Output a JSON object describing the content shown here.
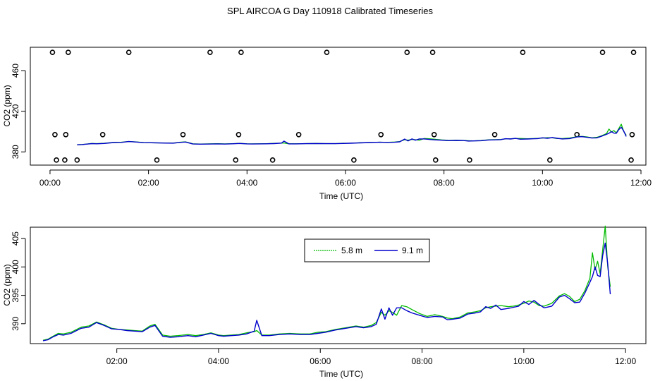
{
  "title": "SPL AIRCOA G  Day 110918  Calibrated Timeseries",
  "chart_data": [
    {
      "type": "line",
      "name": "top-panel",
      "xlabel": "Time (UTC)",
      "ylabel": "CO2 (ppm)",
      "xlim": [
        -0.4,
        12.1
      ],
      "ylim": [
        367,
        483
      ],
      "xticks": [
        0,
        2,
        4,
        6,
        8,
        10,
        12
      ],
      "xtick_labels": [
        "00:00",
        "02:00",
        "04:00",
        "06:00",
        "08:00",
        "10:00",
        "12:00"
      ],
      "yticks": [
        380,
        420,
        460
      ],
      "ytick_labels": [
        "380",
        "420",
        "460"
      ],
      "calibration_points": {
        "high": {
          "y": 478,
          "x": [
            0.05,
            0.37,
            1.6,
            3.25,
            3.88,
            5.62,
            7.25,
            7.77,
            9.6,
            11.22,
            11.85
          ]
        },
        "mid": {
          "y": 397,
          "x": [
            0.1,
            0.32,
            1.07,
            2.7,
            3.83,
            5.05,
            6.72,
            7.8,
            9.03,
            10.7,
            11.82
          ]
        },
        "low": {
          "y": 372,
          "x": [
            0.13,
            0.3,
            0.55,
            2.17,
            3.77,
            4.52,
            6.17,
            7.83,
            8.52,
            10.15,
            11.8
          ]
        }
      },
      "series": [
        {
          "name": "5.8 m",
          "color": "#00bb00"
        },
        {
          "name": "9.1 m",
          "color": "#0000cc"
        }
      ]
    },
    {
      "type": "line",
      "name": "bottom-panel",
      "xlabel": "Time (UTC)",
      "ylabel": "CO2 (ppm)",
      "xlim": [
        0.3,
        12.4
      ],
      "ylim": [
        386.5,
        407
      ],
      "xticks": [
        2,
        4,
        6,
        8,
        10,
        12
      ],
      "xtick_labels": [
        "02:00",
        "04:00",
        "06:00",
        "08:00",
        "10:00",
        "12:00"
      ],
      "yticks": [
        390,
        395,
        400,
        405
      ],
      "ytick_labels": [
        "390",
        "395",
        "400",
        "405"
      ],
      "legend": {
        "position": "top-center"
      },
      "x": [
        0.55,
        0.65,
        0.75,
        0.85,
        0.95,
        1.1,
        1.3,
        1.45,
        1.6,
        1.75,
        1.9,
        2.05,
        2.2,
        2.35,
        2.5,
        2.65,
        2.75,
        2.9,
        3.05,
        3.2,
        3.4,
        3.55,
        3.7,
        3.85,
        4.0,
        4.1,
        4.25,
        4.4,
        4.55,
        4.7,
        4.75,
        4.85,
        5.0,
        5.2,
        5.4,
        5.6,
        5.8,
        5.95,
        6.1,
        6.3,
        6.5,
        6.7,
        6.85,
        7.0,
        7.1,
        7.2,
        7.27,
        7.35,
        7.42,
        7.5,
        7.6,
        7.7,
        7.8,
        7.95,
        8.1,
        8.25,
        8.4,
        8.5,
        8.6,
        8.75,
        8.9,
        9.05,
        9.15,
        9.25,
        9.35,
        9.45,
        9.55,
        9.7,
        9.8,
        9.9,
        10.0,
        10.1,
        10.2,
        10.3,
        10.4,
        10.55,
        10.7,
        10.8,
        10.9,
        11.0,
        11.1,
        11.2,
        11.3,
        11.35,
        11.4,
        11.45,
        11.5,
        11.55,
        11.6,
        11.65,
        11.7
      ],
      "series": [
        {
          "name": "5.8 m",
          "color": "#00bb00",
          "values": [
            387.1,
            387.3,
            387.8,
            388.3,
            388.2,
            388.5,
            389.4,
            389.6,
            390.3,
            389.8,
            389.2,
            389.0,
            388.9,
            388.8,
            388.7,
            389.6,
            389.9,
            388.0,
            387.8,
            387.9,
            388.1,
            387.9,
            388.1,
            388.4,
            388.0,
            387.9,
            388.0,
            388.1,
            388.4,
            388.6,
            388.8,
            388.0,
            388.0,
            388.2,
            388.3,
            388.2,
            388.2,
            388.5,
            388.6,
            389.0,
            389.3,
            389.6,
            389.4,
            389.7,
            390.2,
            392.0,
            391.5,
            392.3,
            392.0,
            391.5,
            393.2,
            393.0,
            392.5,
            391.8,
            391.3,
            391.6,
            391.3,
            391.0,
            390.9,
            391.2,
            391.9,
            392.1,
            392.3,
            392.8,
            393.0,
            393.1,
            393.2,
            393.0,
            393.1,
            393.3,
            393.6,
            394.0,
            393.8,
            393.2,
            393.1,
            393.6,
            394.9,
            395.3,
            394.8,
            393.9,
            394.3,
            395.8,
            398.0,
            402.5,
            399.5,
            401.0,
            398.8,
            403.0,
            407.2,
            400.0,
            396.5
          ]
        },
        {
          "name": "9.1 m",
          "color": "#0000cc",
          "values": [
            387.0,
            387.2,
            387.7,
            388.1,
            388.0,
            388.3,
            389.2,
            389.4,
            390.2,
            389.7,
            389.1,
            389.0,
            388.8,
            388.7,
            388.6,
            389.4,
            389.7,
            387.8,
            387.6,
            387.7,
            387.9,
            387.7,
            388.0,
            388.3,
            387.9,
            387.8,
            387.9,
            388.0,
            388.2,
            388.7,
            390.6,
            387.9,
            387.9,
            388.1,
            388.2,
            388.1,
            388.1,
            388.3,
            388.5,
            388.9,
            389.2,
            389.5,
            389.3,
            389.5,
            389.9,
            392.6,
            390.8,
            392.8,
            391.5,
            392.8,
            392.8,
            392.3,
            391.9,
            391.5,
            391.1,
            391.3,
            391.2,
            390.7,
            390.8,
            391.0,
            391.7,
            391.9,
            392.1,
            393.0,
            392.7,
            393.3,
            392.5,
            392.7,
            392.9,
            393.1,
            393.9,
            393.4,
            394.1,
            393.4,
            392.8,
            393.1,
            394.7,
            395.0,
            394.4,
            393.7,
            393.8,
            395.4,
            397.3,
            398.3,
            400.0,
            398.5,
            398.3,
            402.0,
            404.2,
            400.5,
            395.2
          ]
        }
      ]
    }
  ]
}
